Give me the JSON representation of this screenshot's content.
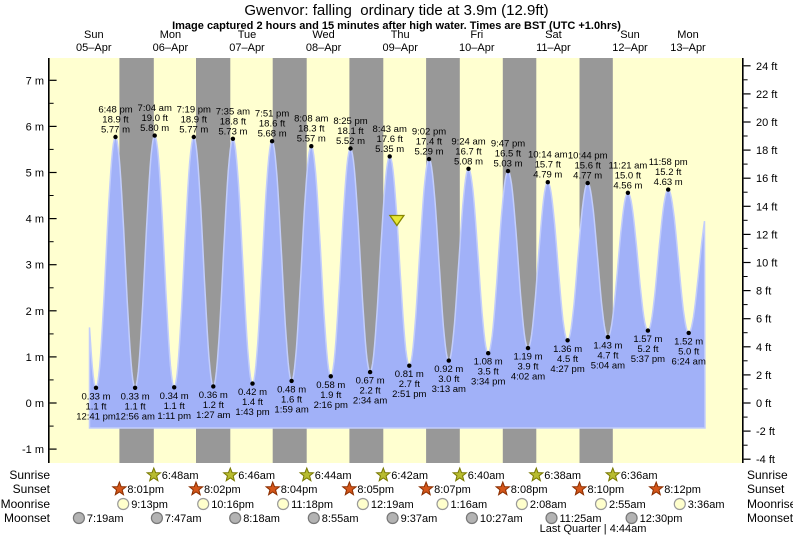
{
  "title": "Gwenvor: falling  ordinary tide at 3.9m (12.9ft)",
  "subtitle": "Image captured 2 hours and 15 minutes after high water. Times are BST (UTC +1.0hrs)",
  "days": [
    {
      "name": "Sun",
      "date": "05–Apr"
    },
    {
      "name": "Mon",
      "date": "06–Apr"
    },
    {
      "name": "Tue",
      "date": "07–Apr"
    },
    {
      "name": "Wed",
      "date": "08–Apr"
    },
    {
      "name": "Thu",
      "date": "09–Apr"
    },
    {
      "name": "Fri",
      "date": "10–Apr"
    },
    {
      "name": "Sat",
      "date": "11–Apr"
    },
    {
      "name": "Sun",
      "date": "12–Apr"
    },
    {
      "name": "Mon",
      "date": "13–Apr"
    }
  ],
  "chart_data": {
    "type": "area",
    "title": "Gwenvor tide curve, 05-Apr to 13-Apr",
    "y_axis_m": {
      "ticks": [
        {
          "v": 7,
          "label": "7 m"
        },
        {
          "v": 6,
          "label": "6 m"
        },
        {
          "v": 5,
          "label": "5 m"
        },
        {
          "v": 4,
          "label": "4 m"
        },
        {
          "v": 3,
          "label": "3 m"
        },
        {
          "v": 2,
          "label": "2 m"
        },
        {
          "v": 1,
          "label": "1 m"
        },
        {
          "v": 0,
          "label": "0 m"
        },
        {
          "v": -1,
          "label": "-1 m"
        }
      ],
      "minor_step": 0.5
    },
    "y_axis_ft": {
      "ticks": [
        {
          "v": 24,
          "label": "24 ft"
        },
        {
          "v": 22,
          "label": "22 ft"
        },
        {
          "v": 20,
          "label": "20 ft"
        },
        {
          "v": 18,
          "label": "18 ft"
        },
        {
          "v": 16,
          "label": "16 ft"
        },
        {
          "v": 14,
          "label": "14 ft"
        },
        {
          "v": 12,
          "label": "12 ft"
        },
        {
          "v": 10,
          "label": "10 ft"
        },
        {
          "v": 8,
          "label": "8 ft"
        },
        {
          "v": 6,
          "label": "6 ft"
        },
        {
          "v": 4,
          "label": "4 ft"
        },
        {
          "v": 2,
          "label": "2 ft"
        },
        {
          "v": 0,
          "label": "0 ft"
        },
        {
          "v": -2,
          "label": "-2 ft"
        },
        {
          "v": -4,
          "label": "-4 ft"
        }
      ],
      "minor_step": 1
    },
    "extremes": [
      {
        "day": 0,
        "time": "12:41 pm",
        "height_m": "0.33 m",
        "height_ft": "1.1 ft",
        "kind": "low"
      },
      {
        "day": 0,
        "time": "6:48 pm",
        "height_m": "5.77 m",
        "height_ft": "18.9 ft",
        "kind": "high"
      },
      {
        "day": 1,
        "time": "12:56 am",
        "height_m": "0.33 m",
        "height_ft": "1.1 ft",
        "kind": "low"
      },
      {
        "day": 1,
        "time": "7:04 am",
        "height_m": "5.80 m",
        "height_ft": "19.0 ft",
        "kind": "high"
      },
      {
        "day": 1,
        "time": "1:11 pm",
        "height_m": "0.34 m",
        "height_ft": "1.1 ft",
        "kind": "low"
      },
      {
        "day": 1,
        "time": "7:19 pm",
        "height_m": "5.77 m",
        "height_ft": "18.9 ft",
        "kind": "high"
      },
      {
        "day": 2,
        "time": "1:27 am",
        "height_m": "0.36 m",
        "height_ft": "1.2 ft",
        "kind": "low"
      },
      {
        "day": 2,
        "time": "7:35 am",
        "height_m": "5.73 m",
        "height_ft": "18.8 ft",
        "kind": "high"
      },
      {
        "day": 2,
        "time": "1:43 pm",
        "height_m": "0.42 m",
        "height_ft": "1.4 ft",
        "kind": "low"
      },
      {
        "day": 2,
        "time": "7:51 pm",
        "height_m": "5.68 m",
        "height_ft": "18.6 ft",
        "kind": "high"
      },
      {
        "day": 3,
        "time": "1:59 am",
        "height_m": "0.48 m",
        "height_ft": "1.6 ft",
        "kind": "low"
      },
      {
        "day": 3,
        "time": "8:08 am",
        "height_m": "5.57 m",
        "height_ft": "18.3 ft",
        "kind": "high"
      },
      {
        "day": 3,
        "time": "2:16 pm",
        "height_m": "0.58 m",
        "height_ft": "1.9 ft",
        "kind": "low"
      },
      {
        "day": 3,
        "time": "8:25 pm",
        "height_m": "5.52 m",
        "height_ft": "18.1 ft",
        "kind": "high"
      },
      {
        "day": 4,
        "time": "2:34 am",
        "height_m": "0.67 m",
        "height_ft": "2.2 ft",
        "kind": "low"
      },
      {
        "day": 4,
        "time": "8:43 am",
        "height_m": "5.35 m",
        "height_ft": "17.6 ft",
        "kind": "high"
      },
      {
        "day": 4,
        "time": "2:51 pm",
        "height_m": "0.81 m",
        "height_ft": "2.7 ft",
        "kind": "low"
      },
      {
        "day": 4,
        "time": "9:02 pm",
        "height_m": "5.29 m",
        "height_ft": "17.4 ft",
        "kind": "high"
      },
      {
        "day": 5,
        "time": "3:13 am",
        "height_m": "0.92 m",
        "height_ft": "3.0 ft",
        "kind": "low"
      },
      {
        "day": 5,
        "time": "9:24 am",
        "height_m": "5.08 m",
        "height_ft": "16.7 ft",
        "kind": "high"
      },
      {
        "day": 5,
        "time": "3:34 pm",
        "height_m": "1.08 m",
        "height_ft": "3.5 ft",
        "kind": "low"
      },
      {
        "day": 5,
        "time": "9:47 pm",
        "height_m": "5.03 m",
        "height_ft": "16.5 ft",
        "kind": "high"
      },
      {
        "day": 6,
        "time": "4:02 am",
        "height_m": "1.19 m",
        "height_ft": "3.9 ft",
        "kind": "low"
      },
      {
        "day": 6,
        "time": "10:14 am",
        "height_m": "4.79 m",
        "height_ft": "15.7 ft",
        "kind": "high"
      },
      {
        "day": 6,
        "time": "4:27 pm",
        "height_m": "1.36 m",
        "height_ft": "4.5 ft",
        "kind": "low"
      },
      {
        "day": 6,
        "time": "10:44 pm",
        "height_m": "4.77 m",
        "height_ft": "15.6 ft",
        "kind": "high"
      },
      {
        "day": 7,
        "time": "5:04 am",
        "height_m": "1.43 m",
        "height_ft": "4.7 ft",
        "kind": "low"
      },
      {
        "day": 7,
        "time": "11:21 am",
        "height_m": "4.56 m",
        "height_ft": "15.0 ft",
        "kind": "high"
      },
      {
        "day": 7,
        "time": "5:37 pm",
        "height_m": "1.57 m",
        "height_ft": "5.2 ft",
        "kind": "low"
      },
      {
        "day": 7,
        "time": "11:58 pm",
        "height_m": "4.63 m",
        "height_ft": "15.2 ft",
        "kind": "high"
      },
      {
        "day": 8,
        "time": "6:24 am",
        "height_m": "1.52 m",
        "height_ft": "5.0 ft",
        "kind": "low"
      }
    ],
    "capture_marker": {
      "day": 4,
      "time": "10:58 am",
      "height_m": 3.9
    },
    "curve_edges": {
      "left": {
        "day": 0,
        "time": "10:40 am"
      },
      "right": {
        "day": 8,
        "time": "11:30 am"
      },
      "offscreen_high_before": {
        "day": 0,
        "time": "6:33 am",
        "height_m": 5.7
      },
      "offscreen_high_after": {
        "day": 8,
        "time": "12:50 pm",
        "height_m": 4.3
      }
    }
  },
  "astro": {
    "rows": [
      {
        "label": "Sunrise",
        "icon": "sunrise-star-icon",
        "events": [
          {
            "day": 1,
            "time": "6:48am"
          },
          {
            "day": 2,
            "time": "6:46am"
          },
          {
            "day": 3,
            "time": "6:44am"
          },
          {
            "day": 4,
            "time": "6:42am"
          },
          {
            "day": 5,
            "time": "6:40am"
          },
          {
            "day": 6,
            "time": "6:38am"
          },
          {
            "day": 7,
            "time": "6:36am"
          }
        ]
      },
      {
        "label": "Sunset",
        "icon": "sunset-star-icon",
        "events": [
          {
            "day": 0,
            "time": "8:01pm"
          },
          {
            "day": 1,
            "time": "8:02pm"
          },
          {
            "day": 2,
            "time": "8:04pm"
          },
          {
            "day": 3,
            "time": "8:05pm"
          },
          {
            "day": 4,
            "time": "8:07pm"
          },
          {
            "day": 5,
            "time": "8:08pm"
          },
          {
            "day": 6,
            "time": "8:10pm"
          },
          {
            "day": 7,
            "time": "8:12pm"
          }
        ]
      },
      {
        "label": "Moonrise",
        "icon": "moonrise-circle-icon",
        "events": [
          {
            "day": 0,
            "time": "9:13pm"
          },
          {
            "day": 1,
            "time": "10:16pm"
          },
          {
            "day": 2,
            "time": "11:18pm"
          },
          {
            "day": 4,
            "time": "12:19am"
          },
          {
            "day": 5,
            "time": "1:16am"
          },
          {
            "day": 6,
            "time": "2:08am"
          },
          {
            "day": 7,
            "time": "2:55am"
          },
          {
            "day": 8,
            "time": "3:36am"
          }
        ]
      },
      {
        "label": "Moonset",
        "icon": "moonset-circle-icon",
        "events": [
          {
            "day": 0,
            "time": "7:19am"
          },
          {
            "day": 1,
            "time": "7:47am"
          },
          {
            "day": 2,
            "time": "8:18am"
          },
          {
            "day": 3,
            "time": "8:55am"
          },
          {
            "day": 4,
            "time": "9:37am"
          },
          {
            "day": 5,
            "time": "10:27am"
          },
          {
            "day": 6,
            "time": "11:25am"
          },
          {
            "day": 7,
            "time": "12:30pm"
          }
        ]
      }
    ],
    "footnote": "Last Quarter | 4:44am"
  },
  "colors": {
    "background": "#ffffff",
    "plot_bg": "#ffffd0",
    "night_band": "#989898",
    "tide_fill": "#a1b1f8",
    "tide_edge": "#c2cdfb",
    "day_label": "#ee2222",
    "axis": "#000000",
    "sunrise_star": "#b8bc30",
    "sunrise_star_border": "#787800",
    "sunset_star": "#d4561a",
    "sunset_star_border": "#8a2e00",
    "moonrise_circle": "#ffffcc",
    "moonrise_circle_border": "#999999",
    "moonset_circle": "#b3b3b3",
    "moonset_circle_border": "#777777",
    "marker_fill": "#e8e838",
    "marker_border": "#888800"
  }
}
